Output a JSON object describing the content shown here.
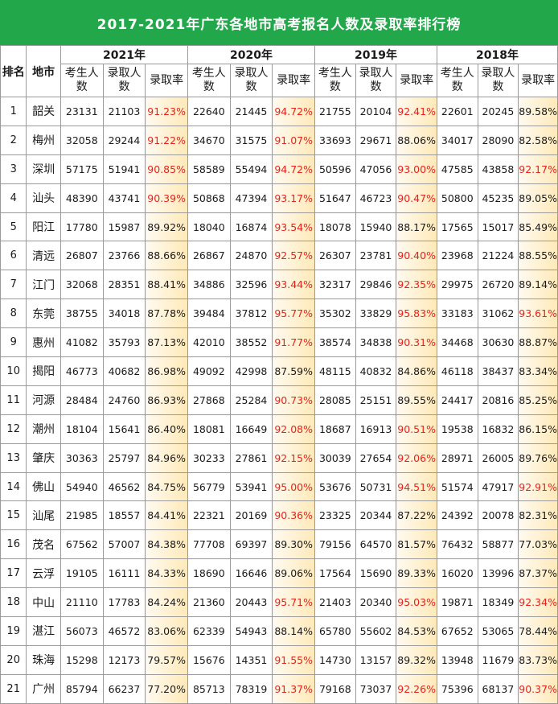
{
  "title": "2017-2021年广东各地市高考报名人数及录取率排行榜",
  "header": {
    "rank": "排名",
    "city": "地市",
    "years": [
      "2021年",
      "2020年",
      "2019年",
      "2018年"
    ],
    "sub": [
      "考生人数",
      "录取人数",
      "录取率"
    ]
  },
  "colors": {
    "title_bg": "#22a84a",
    "highlight_text": "#e8231b",
    "rate_bg": "#ffe9b8"
  },
  "rows": [
    {
      "rank": "1",
      "city": "韶关",
      "y2021": {
        "a": "23131",
        "b": "21103",
        "r": "91.23%",
        "hi": true
      },
      "y2020": {
        "a": "22640",
        "b": "21445",
        "r": "94.72%",
        "hi": true
      },
      "y2019": {
        "a": "21755",
        "b": "20104",
        "r": "92.41%",
        "hi": true
      },
      "y2018": {
        "a": "22601",
        "b": "20245",
        "r": "89.58%",
        "hi": false
      }
    },
    {
      "rank": "2",
      "city": "梅州",
      "y2021": {
        "a": "32058",
        "b": "29244",
        "r": "91.22%",
        "hi": true
      },
      "y2020": {
        "a": "34670",
        "b": "31575",
        "r": "91.07%",
        "hi": true
      },
      "y2019": {
        "a": "33693",
        "b": "29671",
        "r": "88.06%",
        "hi": false
      },
      "y2018": {
        "a": "34017",
        "b": "28090",
        "r": "82.58%",
        "hi": false
      }
    },
    {
      "rank": "3",
      "city": "深圳",
      "y2021": {
        "a": "57175",
        "b": "51941",
        "r": "90.85%",
        "hi": true
      },
      "y2020": {
        "a": "58589",
        "b": "55494",
        "r": "94.72%",
        "hi": true
      },
      "y2019": {
        "a": "50596",
        "b": "47056",
        "r": "93.00%",
        "hi": true
      },
      "y2018": {
        "a": "47585",
        "b": "43858",
        "r": "92.17%",
        "hi": true
      }
    },
    {
      "rank": "4",
      "city": "汕头",
      "y2021": {
        "a": "48390",
        "b": "43741",
        "r": "90.39%",
        "hi": true
      },
      "y2020": {
        "a": "50868",
        "b": "47394",
        "r": "93.17%",
        "hi": true
      },
      "y2019": {
        "a": "51647",
        "b": "46723",
        "r": "90.47%",
        "hi": true
      },
      "y2018": {
        "a": "50800",
        "b": "45235",
        "r": "89.05%",
        "hi": false
      }
    },
    {
      "rank": "5",
      "city": "阳江",
      "y2021": {
        "a": "17780",
        "b": "15987",
        "r": "89.92%",
        "hi": false
      },
      "y2020": {
        "a": "18040",
        "b": "16874",
        "r": "93.54%",
        "hi": true
      },
      "y2019": {
        "a": "18078",
        "b": "15940",
        "r": "88.17%",
        "hi": false
      },
      "y2018": {
        "a": "17565",
        "b": "15017",
        "r": "85.49%",
        "hi": false
      }
    },
    {
      "rank": "6",
      "city": "清远",
      "y2021": {
        "a": "26807",
        "b": "23766",
        "r": "88.66%",
        "hi": false
      },
      "y2020": {
        "a": "26867",
        "b": "24870",
        "r": "92.57%",
        "hi": true
      },
      "y2019": {
        "a": "26307",
        "b": "23781",
        "r": "90.40%",
        "hi": true
      },
      "y2018": {
        "a": "23968",
        "b": "21224",
        "r": "88.55%",
        "hi": false
      }
    },
    {
      "rank": "7",
      "city": "江门",
      "y2021": {
        "a": "32068",
        "b": "28351",
        "r": "88.41%",
        "hi": false
      },
      "y2020": {
        "a": "34886",
        "b": "32596",
        "r": "93.44%",
        "hi": true
      },
      "y2019": {
        "a": "32317",
        "b": "29846",
        "r": "92.35%",
        "hi": true
      },
      "y2018": {
        "a": "29975",
        "b": "26720",
        "r": "89.14%",
        "hi": false
      }
    },
    {
      "rank": "8",
      "city": "东莞",
      "y2021": {
        "a": "38755",
        "b": "34018",
        "r": "87.78%",
        "hi": false
      },
      "y2020": {
        "a": "39484",
        "b": "37812",
        "r": "95.77%",
        "hi": true
      },
      "y2019": {
        "a": "35302",
        "b": "33829",
        "r": "95.83%",
        "hi": true
      },
      "y2018": {
        "a": "33183",
        "b": "31062",
        "r": "93.61%",
        "hi": true
      }
    },
    {
      "rank": "9",
      "city": "惠州",
      "y2021": {
        "a": "41082",
        "b": "35793",
        "r": "87.13%",
        "hi": false
      },
      "y2020": {
        "a": "42010",
        "b": "38552",
        "r": "91.77%",
        "hi": true
      },
      "y2019": {
        "a": "38574",
        "b": "34838",
        "r": "90.31%",
        "hi": true
      },
      "y2018": {
        "a": "34468",
        "b": "30630",
        "r": "88.87%",
        "hi": false
      }
    },
    {
      "rank": "10",
      "city": "揭阳",
      "y2021": {
        "a": "46773",
        "b": "40682",
        "r": "86.98%",
        "hi": false
      },
      "y2020": {
        "a": "49092",
        "b": "42998",
        "r": "87.59%",
        "hi": false
      },
      "y2019": {
        "a": "48115",
        "b": "40832",
        "r": "84.86%",
        "hi": false
      },
      "y2018": {
        "a": "46118",
        "b": "38437",
        "r": "83.34%",
        "hi": false
      }
    },
    {
      "rank": "11",
      "city": "河源",
      "y2021": {
        "a": "28484",
        "b": "24760",
        "r": "86.93%",
        "hi": false
      },
      "y2020": {
        "a": "27868",
        "b": "25284",
        "r": "90.73%",
        "hi": true
      },
      "y2019": {
        "a": "28085",
        "b": "25151",
        "r": "89.55%",
        "hi": false
      },
      "y2018": {
        "a": "24417",
        "b": "20816",
        "r": "85.25%",
        "hi": false
      }
    },
    {
      "rank": "12",
      "city": "潮州",
      "y2021": {
        "a": "18104",
        "b": "15641",
        "r": "86.40%",
        "hi": false
      },
      "y2020": {
        "a": "18081",
        "b": "16649",
        "r": "92.08%",
        "hi": true
      },
      "y2019": {
        "a": "18687",
        "b": "16913",
        "r": "90.51%",
        "hi": true
      },
      "y2018": {
        "a": "19538",
        "b": "16832",
        "r": "86.15%",
        "hi": false
      }
    },
    {
      "rank": "13",
      "city": "肇庆",
      "y2021": {
        "a": "30363",
        "b": "25797",
        "r": "84.96%",
        "hi": false
      },
      "y2020": {
        "a": "30233",
        "b": "27861",
        "r": "92.15%",
        "hi": true
      },
      "y2019": {
        "a": "30039",
        "b": "27654",
        "r": "92.06%",
        "hi": true
      },
      "y2018": {
        "a": "28971",
        "b": "26005",
        "r": "89.76%",
        "hi": false
      }
    },
    {
      "rank": "14",
      "city": "佛山",
      "y2021": {
        "a": "54940",
        "b": "46562",
        "r": "84.75%",
        "hi": false
      },
      "y2020": {
        "a": "56779",
        "b": "53941",
        "r": "95.00%",
        "hi": true
      },
      "y2019": {
        "a": "53676",
        "b": "50731",
        "r": "94.51%",
        "hi": true
      },
      "y2018": {
        "a": "51574",
        "b": "47917",
        "r": "92.91%",
        "hi": true
      }
    },
    {
      "rank": "15",
      "city": "汕尾",
      "y2021": {
        "a": "21985",
        "b": "18557",
        "r": "84.41%",
        "hi": false
      },
      "y2020": {
        "a": "22321",
        "b": "20169",
        "r": "90.36%",
        "hi": true
      },
      "y2019": {
        "a": "23325",
        "b": "20344",
        "r": "87.22%",
        "hi": false
      },
      "y2018": {
        "a": "24392",
        "b": "20078",
        "r": "82.31%",
        "hi": false
      }
    },
    {
      "rank": "16",
      "city": "茂名",
      "y2021": {
        "a": "67562",
        "b": "57007",
        "r": "84.38%",
        "hi": false
      },
      "y2020": {
        "a": "77708",
        "b": "69397",
        "r": "89.30%",
        "hi": false
      },
      "y2019": {
        "a": "79156",
        "b": "64570",
        "r": "81.57%",
        "hi": false
      },
      "y2018": {
        "a": "76432",
        "b": "58877",
        "r": "77.03%",
        "hi": false
      }
    },
    {
      "rank": "17",
      "city": "云浮",
      "y2021": {
        "a": "19105",
        "b": "16111",
        "r": "84.33%",
        "hi": false
      },
      "y2020": {
        "a": "18690",
        "b": "16646",
        "r": "89.06%",
        "hi": false
      },
      "y2019": {
        "a": "17564",
        "b": "15690",
        "r": "89.33%",
        "hi": false
      },
      "y2018": {
        "a": "16020",
        "b": "13996",
        "r": "87.37%",
        "hi": false
      }
    },
    {
      "rank": "18",
      "city": "中山",
      "y2021": {
        "a": "21110",
        "b": "17783",
        "r": "84.24%",
        "hi": false
      },
      "y2020": {
        "a": "21360",
        "b": "20443",
        "r": "95.71%",
        "hi": true
      },
      "y2019": {
        "a": "21403",
        "b": "20340",
        "r": "95.03%",
        "hi": true
      },
      "y2018": {
        "a": "19871",
        "b": "18349",
        "r": "92.34%",
        "hi": true
      }
    },
    {
      "rank": "19",
      "city": "湛江",
      "y2021": {
        "a": "56073",
        "b": "46572",
        "r": "83.06%",
        "hi": false
      },
      "y2020": {
        "a": "62339",
        "b": "54943",
        "r": "88.14%",
        "hi": false
      },
      "y2019": {
        "a": "65780",
        "b": "55602",
        "r": "84.53%",
        "hi": false
      },
      "y2018": {
        "a": "67652",
        "b": "53065",
        "r": "78.44%",
        "hi": false
      }
    },
    {
      "rank": "20",
      "city": "珠海",
      "y2021": {
        "a": "15298",
        "b": "12173",
        "r": "79.57%",
        "hi": false
      },
      "y2020": {
        "a": "15676",
        "b": "14351",
        "r": "91.55%",
        "hi": true
      },
      "y2019": {
        "a": "14730",
        "b": "13157",
        "r": "89.32%",
        "hi": false
      },
      "y2018": {
        "a": "13948",
        "b": "11679",
        "r": "83.73%",
        "hi": false
      }
    },
    {
      "rank": "21",
      "city": "广州",
      "y2021": {
        "a": "85794",
        "b": "66237",
        "r": "77.20%",
        "hi": false
      },
      "y2020": {
        "a": "85713",
        "b": "78319",
        "r": "91.37%",
        "hi": true
      },
      "y2019": {
        "a": "79168",
        "b": "73037",
        "r": "92.26%",
        "hi": true
      },
      "y2018": {
        "a": "75396",
        "b": "68137",
        "r": "90.37%",
        "hi": true
      }
    }
  ]
}
